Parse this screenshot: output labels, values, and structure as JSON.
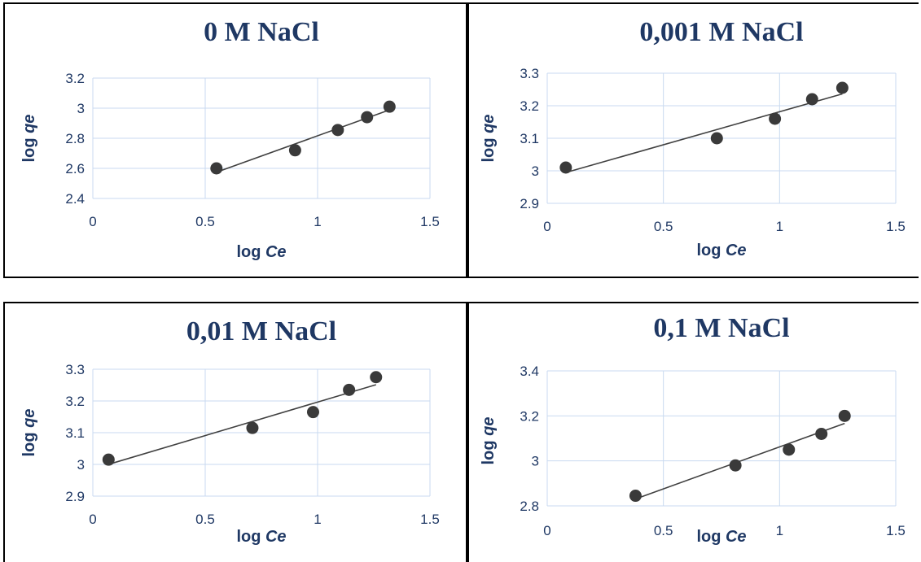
{
  "colors": {
    "title": "#1f3864",
    "axis_text": "#1f3864",
    "grid": "#c9daf0",
    "marker": "#3a3a3a",
    "trendline": "#404040",
    "frame": "#000000"
  },
  "chart_data": [
    {
      "type": "scatter",
      "title": "0 M NaCl",
      "xlabel_prefix": "log ",
      "xlabel_var": "Ce",
      "ylabel_prefix": "log ",
      "ylabel_var": "qe",
      "xlim": [
        0,
        1.5
      ],
      "ylim": [
        2.4,
        3.2
      ],
      "xticks": [
        0,
        0.5,
        1,
        1.5
      ],
      "xtick_labels": [
        "0",
        "0.5",
        "1",
        "1.5"
      ],
      "yticks": [
        2.4,
        2.6,
        2.8,
        3,
        3.2
      ],
      "ytick_labels": [
        "2.4",
        "2.6",
        "2.8",
        "3",
        "3.2"
      ],
      "grid": true,
      "trendline": "linear",
      "x": [
        0.55,
        0.9,
        1.09,
        1.22,
        1.32
      ],
      "y": [
        2.6,
        2.72,
        2.855,
        2.94,
        3.01
      ]
    },
    {
      "type": "scatter",
      "title": "0,001 M NaCl",
      "xlabel_prefix": "log ",
      "xlabel_var": "Ce",
      "ylabel_prefix": "log ",
      "ylabel_var": "qe",
      "xlim": [
        0,
        1.5
      ],
      "ylim": [
        2.9,
        3.3
      ],
      "xticks": [
        0,
        0.5,
        1,
        1.5
      ],
      "xtick_labels": [
        "0",
        "0.5",
        "1",
        "1.5"
      ],
      "yticks": [
        2.9,
        3,
        3.1,
        3.2,
        3.3
      ],
      "ytick_labels": [
        "2.9",
        "3",
        "3.1",
        "3.2",
        "3.3"
      ],
      "grid": true,
      "trendline": "linear",
      "x": [
        0.08,
        0.73,
        0.98,
        1.14,
        1.27
      ],
      "y": [
        3.01,
        3.1,
        3.16,
        3.22,
        3.255
      ]
    },
    {
      "type": "scatter",
      "title": "0,01 M NaCl",
      "xlabel_prefix": "log ",
      "xlabel_var": "Ce",
      "ylabel_prefix": "log ",
      "ylabel_var": "qe",
      "xlim": [
        0,
        1.5
      ],
      "ylim": [
        2.9,
        3.3
      ],
      "xticks": [
        0,
        0.5,
        1,
        1.5
      ],
      "xtick_labels": [
        "0",
        "0.5",
        "1",
        "1.5"
      ],
      "yticks": [
        2.9,
        3,
        3.1,
        3.2,
        3.3
      ],
      "ytick_labels": [
        "2.9",
        "3",
        "3.1",
        "3.2",
        "3.3"
      ],
      "grid": true,
      "trendline": "linear",
      "x": [
        0.07,
        0.71,
        0.98,
        1.14,
        1.26
      ],
      "y": [
        3.015,
        3.115,
        3.165,
        3.235,
        3.275
      ]
    },
    {
      "type": "scatter",
      "title": "0,1 M NaCl",
      "xlabel_prefix": "log ",
      "xlabel_var": "Ce",
      "ylabel_prefix": "log ",
      "ylabel_var": "qe",
      "xlim": [
        0,
        1.5
      ],
      "ylim": [
        2.8,
        3.4
      ],
      "xticks": [
        0,
        0.5,
        1,
        1.5
      ],
      "xtick_labels": [
        "0",
        "0.5",
        "1",
        "1.5"
      ],
      "yticks": [
        2.8,
        3,
        3.2,
        3.4
      ],
      "ytick_labels": [
        "2.8",
        "3",
        "3.2",
        "3.4"
      ],
      "grid": true,
      "trendline": "linear",
      "x": [
        0.38,
        0.81,
        1.04,
        1.18,
        1.28
      ],
      "y": [
        2.845,
        2.98,
        3.05,
        3.12,
        3.2
      ]
    }
  ]
}
